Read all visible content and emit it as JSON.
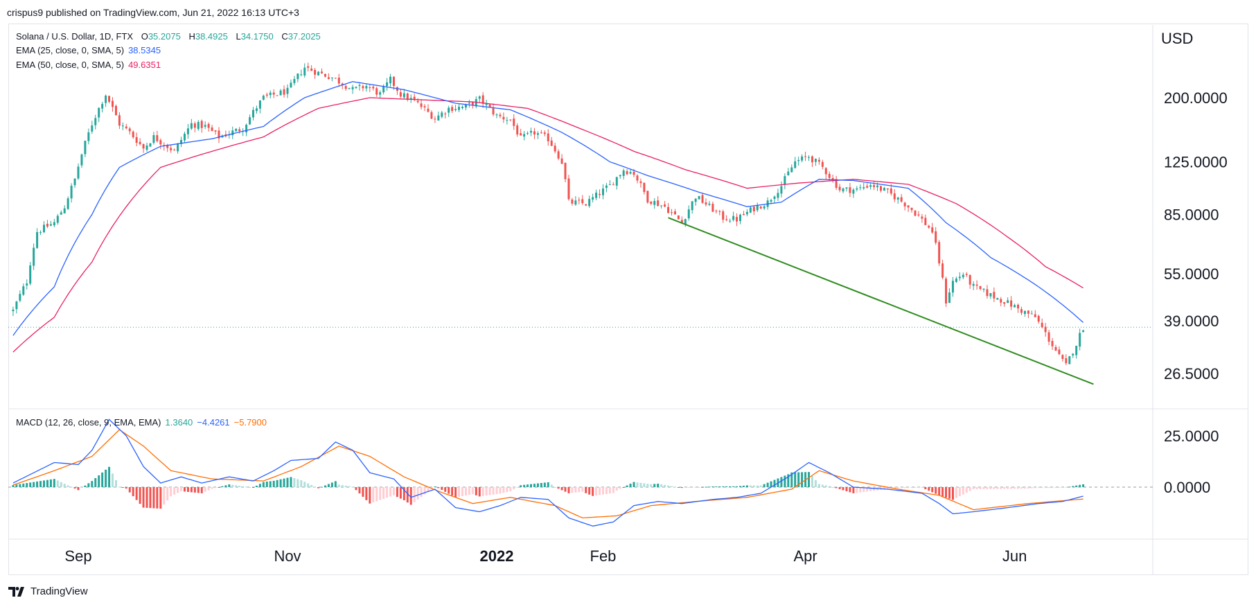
{
  "caption": "crispus9 published on TradingView.com, Jun 21, 2022 16:13 UTC+3",
  "brand": "TradingView",
  "legend": {
    "symbol": {
      "label": "Solana / U.S. Dollar, 1D, FTX",
      "o_label": "O",
      "o": "35.2075",
      "h_label": "H",
      "h": "38.4925",
      "l_label": "L",
      "l": "34.1750",
      "c_label": "C",
      "c": "37.2025"
    },
    "ema25": {
      "label": "EMA (25, close, 0, SMA, 5)",
      "value": "38.5345"
    },
    "ema50": {
      "label": "EMA (50, close, 0, SMA, 5)",
      "value": "49.6351"
    },
    "macd": {
      "label": "MACD (12, 26, close, 9, EMA, EMA)",
      "hist": "1.3640",
      "macd": "−4.4261",
      "signal": "−5.7900"
    }
  },
  "colors": {
    "up": "#26a69a",
    "down": "#ef5350",
    "ema25": "#2962ff",
    "ema50": "#e91e63",
    "macd": "#2962ff",
    "signal": "#ff6d00",
    "trendline": "#2e8b1f",
    "grid": "#e0e3eb",
    "hist_up_strong": "#26a69a",
    "hist_up_weak": "#b2dfdb",
    "hist_down_strong": "#ef5350",
    "hist_down_weak": "#ffcdd2",
    "text": "#131722",
    "price_line": "#26a69a"
  },
  "chart_data": [
    {
      "type": "candlestick",
      "title": "Solana / U.S. Dollar, 1D, FTX",
      "ylabel": "USD",
      "y_scale": "log",
      "y_ticks": [
        "200.0000",
        "125.0000",
        "85.0000",
        "55.0000",
        "39.0000",
        "26.5000"
      ],
      "y_tick_values": [
        200,
        125,
        85,
        55,
        39,
        26.5
      ],
      "x_ticks": [
        {
          "label": "Sep",
          "date": "2021-09-01",
          "bold": false
        },
        {
          "label": "Nov",
          "date": "2021-11-01",
          "bold": false
        },
        {
          "label": "2022",
          "date": "2022-01-01",
          "bold": true
        },
        {
          "label": "Feb",
          "date": "2022-02-01",
          "bold": false
        },
        {
          "label": "Apr",
          "date": "2022-04-01",
          "bold": false
        },
        {
          "label": "Jun",
          "date": "2022-06-01",
          "bold": false
        }
      ],
      "x_range": [
        "2021-08-13",
        "2022-06-21"
      ],
      "close_anchors": [
        [
          "2021-08-13",
          42
        ],
        [
          "2021-08-17",
          52
        ],
        [
          "2021-08-20",
          75
        ],
        [
          "2021-08-25",
          80
        ],
        [
          "2021-08-28",
          90
        ],
        [
          "2021-08-31",
          110
        ],
        [
          "2021-09-05",
          165
        ],
        [
          "2021-09-09",
          205
        ],
        [
          "2021-09-13",
          165
        ],
        [
          "2021-09-16",
          155
        ],
        [
          "2021-09-20",
          138
        ],
        [
          "2021-09-23",
          150
        ],
        [
          "2021-09-29",
          135
        ],
        [
          "2021-10-04",
          165
        ],
        [
          "2021-10-08",
          162
        ],
        [
          "2021-10-12",
          150
        ],
        [
          "2021-10-19",
          160
        ],
        [
          "2021-10-25",
          200
        ],
        [
          "2021-11-01",
          210
        ],
        [
          "2021-11-06",
          250
        ],
        [
          "2021-11-10",
          240
        ],
        [
          "2021-11-14",
          232
        ],
        [
          "2021-11-20",
          212
        ],
        [
          "2021-11-24",
          218
        ],
        [
          "2021-11-28",
          205
        ],
        [
          "2021-12-01",
          228
        ],
        [
          "2021-12-04",
          205
        ],
        [
          "2021-12-08",
          195
        ],
        [
          "2021-12-14",
          172
        ],
        [
          "2021-12-18",
          185
        ],
        [
          "2021-12-23",
          187
        ],
        [
          "2021-12-27",
          198
        ],
        [
          "2022-01-01",
          175
        ],
        [
          "2022-01-05",
          170
        ],
        [
          "2022-01-08",
          148
        ],
        [
          "2022-01-12",
          155
        ],
        [
          "2022-01-16",
          148
        ],
        [
          "2022-01-20",
          125
        ],
        [
          "2022-01-22",
          93
        ],
        [
          "2022-01-27",
          92
        ],
        [
          "2022-02-03",
          105
        ],
        [
          "2022-02-07",
          118
        ],
        [
          "2022-02-10",
          115
        ],
        [
          "2022-02-14",
          95
        ],
        [
          "2022-02-19",
          90
        ],
        [
          "2022-02-24",
          80
        ],
        [
          "2022-02-28",
          97
        ],
        [
          "2022-03-04",
          90
        ],
        [
          "2022-03-08",
          83
        ],
        [
          "2022-03-12",
          82
        ],
        [
          "2022-03-17",
          89
        ],
        [
          "2022-03-21",
          93
        ],
        [
          "2022-03-25",
          105
        ],
        [
          "2022-03-29",
          125
        ],
        [
          "2022-04-02",
          130
        ],
        [
          "2022-04-06",
          120
        ],
        [
          "2022-04-11",
          102
        ],
        [
          "2022-04-16",
          102
        ],
        [
          "2022-04-20",
          106
        ],
        [
          "2022-04-25",
          100
        ],
        [
          "2022-04-30",
          92
        ],
        [
          "2022-05-04",
          84
        ],
        [
          "2022-05-08",
          75
        ],
        [
          "2022-05-12",
          45
        ],
        [
          "2022-05-14",
          52
        ],
        [
          "2022-05-17",
          55
        ],
        [
          "2022-05-20",
          50
        ],
        [
          "2022-05-25",
          47
        ],
        [
          "2022-05-29",
          45
        ],
        [
          "2022-06-03",
          42
        ],
        [
          "2022-06-07",
          40
        ],
        [
          "2022-06-11",
          34
        ],
        [
          "2022-06-14",
          30
        ],
        [
          "2022-06-16",
          28
        ],
        [
          "2022-06-19",
          33
        ],
        [
          "2022-06-21",
          37.2
        ]
      ],
      "ema25_anchors": [
        [
          "2021-08-13",
          35
        ],
        [
          "2021-08-25",
          50
        ],
        [
          "2021-09-05",
          85
        ],
        [
          "2021-09-13",
          120
        ],
        [
          "2021-09-25",
          140
        ],
        [
          "2021-10-10",
          148
        ],
        [
          "2021-10-25",
          162
        ],
        [
          "2021-11-06",
          200
        ],
        [
          "2021-11-20",
          225
        ],
        [
          "2021-12-05",
          212
        ],
        [
          "2021-12-20",
          192
        ],
        [
          "2022-01-05",
          183
        ],
        [
          "2022-01-20",
          155
        ],
        [
          "2022-02-03",
          125
        ],
        [
          "2022-02-14",
          113
        ],
        [
          "2022-03-01",
          100
        ],
        [
          "2022-03-15",
          90
        ],
        [
          "2022-03-25",
          93
        ],
        [
          "2022-04-05",
          110
        ],
        [
          "2022-04-15",
          109
        ],
        [
          "2022-05-01",
          103
        ],
        [
          "2022-05-12",
          80
        ],
        [
          "2022-05-25",
          62
        ],
        [
          "2022-06-08",
          50
        ],
        [
          "2022-06-21",
          38.5
        ]
      ],
      "ema50_anchors": [
        [
          "2021-08-13",
          31
        ],
        [
          "2021-08-25",
          40
        ],
        [
          "2021-09-05",
          60
        ],
        [
          "2021-09-15",
          90
        ],
        [
          "2021-09-25",
          120
        ],
        [
          "2021-10-10",
          135
        ],
        [
          "2021-10-25",
          150
        ],
        [
          "2021-11-10",
          185
        ],
        [
          "2021-11-25",
          200
        ],
        [
          "2021-12-10",
          197
        ],
        [
          "2021-12-25",
          194
        ],
        [
          "2022-01-10",
          185
        ],
        [
          "2022-01-25",
          160
        ],
        [
          "2022-02-10",
          135
        ],
        [
          "2022-02-25",
          118
        ],
        [
          "2022-03-15",
          103
        ],
        [
          "2022-03-30",
          107
        ],
        [
          "2022-04-15",
          110
        ],
        [
          "2022-05-01",
          106
        ],
        [
          "2022-05-15",
          92
        ],
        [
          "2022-05-30",
          72
        ],
        [
          "2022-06-10",
          58
        ],
        [
          "2022-06-21",
          49.6
        ]
      ],
      "trendline": {
        "from": [
          "2022-02-20",
          83
        ],
        "to": [
          "2022-06-24",
          24.5
        ]
      },
      "last_price_line": 37.2
    },
    {
      "type": "macd",
      "title": "MACD (12, 26, close, 9, EMA, EMA)",
      "y_ticks": [
        "25.0000",
        "0.0000"
      ],
      "y_tick_values": [
        25,
        0
      ],
      "macd_anchors": [
        [
          "2021-08-13",
          2
        ],
        [
          "2021-08-25",
          12
        ],
        [
          "2021-09-01",
          11
        ],
        [
          "2021-09-05",
          18
        ],
        [
          "2021-09-10",
          33
        ],
        [
          "2021-09-15",
          25
        ],
        [
          "2021-09-20",
          10
        ],
        [
          "2021-09-25",
          2
        ],
        [
          "2021-10-01",
          5
        ],
        [
          "2021-10-07",
          2
        ],
        [
          "2021-10-15",
          5
        ],
        [
          "2021-10-22",
          3
        ],
        [
          "2021-10-28",
          8
        ],
        [
          "2021-11-02",
          13
        ],
        [
          "2021-11-10",
          14
        ],
        [
          "2021-11-15",
          22
        ],
        [
          "2021-11-20",
          18
        ],
        [
          "2021-11-25",
          7
        ],
        [
          "2021-12-02",
          4
        ],
        [
          "2021-12-07",
          -5
        ],
        [
          "2021-12-14",
          -1
        ],
        [
          "2021-12-20",
          -10
        ],
        [
          "2021-12-27",
          -12
        ],
        [
          "2022-01-02",
          -9
        ],
        [
          "2022-01-08",
          -5
        ],
        [
          "2022-01-16",
          -6
        ],
        [
          "2022-01-22",
          -15
        ],
        [
          "2022-01-29",
          -19
        ],
        [
          "2022-02-04",
          -17
        ],
        [
          "2022-02-10",
          -9
        ],
        [
          "2022-02-17",
          -7
        ],
        [
          "2022-02-24",
          -8
        ],
        [
          "2022-03-05",
          -6
        ],
        [
          "2022-03-12",
          -5
        ],
        [
          "2022-03-19",
          -3
        ],
        [
          "2022-03-27",
          5
        ],
        [
          "2022-04-02",
          12
        ],
        [
          "2022-04-08",
          7
        ],
        [
          "2022-04-15",
          0
        ],
        [
          "2022-04-25",
          -1
        ],
        [
          "2022-05-05",
          -3
        ],
        [
          "2022-05-10",
          -8
        ],
        [
          "2022-05-14",
          -13
        ],
        [
          "2022-05-20",
          -12
        ],
        [
          "2022-05-30",
          -10
        ],
        [
          "2022-06-08",
          -8
        ],
        [
          "2022-06-15",
          -7
        ],
        [
          "2022-06-21",
          -4.4
        ]
      ],
      "signal_anchors": [
        [
          "2021-08-13",
          1
        ],
        [
          "2021-08-25",
          8
        ],
        [
          "2021-09-05",
          15
        ],
        [
          "2021-09-13",
          28
        ],
        [
          "2021-09-20",
          20
        ],
        [
          "2021-09-28",
          8
        ],
        [
          "2021-10-10",
          4
        ],
        [
          "2021-10-25",
          3
        ],
        [
          "2021-11-05",
          10
        ],
        [
          "2021-11-16",
          20
        ],
        [
          "2021-11-25",
          15
        ],
        [
          "2021-12-05",
          5
        ],
        [
          "2021-12-15",
          -2
        ],
        [
          "2021-12-25",
          -8
        ],
        [
          "2022-01-05",
          -5
        ],
        [
          "2022-01-18",
          -9
        ],
        [
          "2022-01-26",
          -15
        ],
        [
          "2022-02-05",
          -14
        ],
        [
          "2022-02-15",
          -9
        ],
        [
          "2022-02-28",
          -7
        ],
        [
          "2022-03-15",
          -5
        ],
        [
          "2022-03-28",
          -1
        ],
        [
          "2022-04-05",
          8
        ],
        [
          "2022-04-15",
          3
        ],
        [
          "2022-04-28",
          -1
        ],
        [
          "2022-05-10",
          -4
        ],
        [
          "2022-05-20",
          -11
        ],
        [
          "2022-06-05",
          -8
        ],
        [
          "2022-06-21",
          -5.8
        ]
      ]
    }
  ]
}
